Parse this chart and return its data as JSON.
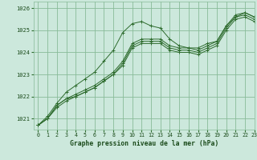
{
  "bg_color": "#cce8dc",
  "grid_color": "#88bb99",
  "line_color": "#2d6b2d",
  "marker": "+",
  "title": "Graphe pression niveau de la mer (hPa)",
  "title_color": "#1a4a1a",
  "xlim": [
    -0.5,
    23
  ],
  "ylim": [
    1020.5,
    1026.3
  ],
  "yticks": [
    1021,
    1022,
    1023,
    1024,
    1025,
    1026
  ],
  "xticks": [
    0,
    1,
    2,
    3,
    4,
    5,
    6,
    7,
    8,
    9,
    10,
    11,
    12,
    13,
    14,
    15,
    16,
    17,
    18,
    19,
    20,
    21,
    22,
    23
  ],
  "series": [
    [
      1020.7,
      1021.1,
      1021.7,
      1022.2,
      1022.5,
      1022.8,
      1023.1,
      1023.6,
      1024.1,
      1024.9,
      1025.3,
      1025.4,
      1025.2,
      1025.1,
      1024.6,
      1024.3,
      1024.2,
      1024.2,
      1024.4,
      1024.5,
      1025.2,
      1025.6,
      1025.8,
      1025.6
    ],
    [
      1020.7,
      1021.0,
      1021.6,
      1021.9,
      1022.1,
      1022.3,
      1022.5,
      1022.8,
      1023.1,
      1023.6,
      1024.4,
      1024.6,
      1024.6,
      1024.6,
      1024.3,
      1024.2,
      1024.2,
      1024.1,
      1024.3,
      1024.5,
      1025.2,
      1025.7,
      1025.8,
      1025.6
    ],
    [
      1020.7,
      1021.0,
      1021.6,
      1021.9,
      1022.0,
      1022.2,
      1022.4,
      1022.7,
      1023.0,
      1023.5,
      1024.3,
      1024.5,
      1024.5,
      1024.5,
      1024.2,
      1024.1,
      1024.1,
      1024.0,
      1024.2,
      1024.4,
      1025.1,
      1025.6,
      1025.7,
      1025.5
    ],
    [
      1020.7,
      1021.0,
      1021.5,
      1021.8,
      1022.0,
      1022.2,
      1022.4,
      1022.7,
      1023.0,
      1023.4,
      1024.2,
      1024.4,
      1024.4,
      1024.4,
      1024.1,
      1024.0,
      1024.0,
      1023.9,
      1024.1,
      1024.3,
      1025.0,
      1025.5,
      1025.6,
      1025.4
    ]
  ]
}
